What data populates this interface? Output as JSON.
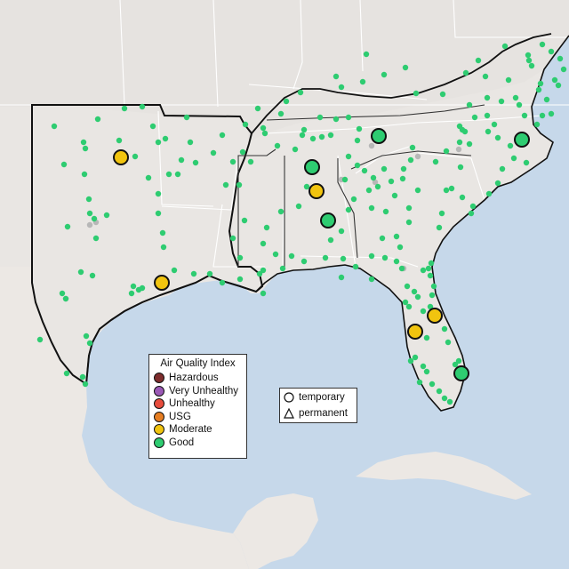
{
  "map": {
    "region": "Southeastern United States",
    "colors": {
      "ocean": "#c6d8ea",
      "land": "#e9e6e3",
      "land_north": "#e7e4e0",
      "mexico": "#ece8e4",
      "state_border": "#ffffff",
      "boundary": "#111111"
    }
  },
  "aqi_legend": {
    "title": "Air Quality Index",
    "items": [
      {
        "label": "Hazardous",
        "color": "#7e2d2d"
      },
      {
        "label": "Very Unhealthy",
        "color": "#9b59b6"
      },
      {
        "label": "Unhealthy",
        "color": "#e74c3c"
      },
      {
        "label": "USG",
        "color": "#e67e22"
      },
      {
        "label": "Moderate",
        "color": "#f1c40f"
      },
      {
        "label": "Good",
        "color": "#2ecc71"
      }
    ]
  },
  "type_legend": {
    "items": [
      {
        "label": "temporary",
        "shape": "circle"
      },
      {
        "label": "permanent",
        "shape": "triangle"
      }
    ]
  },
  "monitor_colors": {
    "good": "#2ecc71",
    "moderate": "#f1c40f",
    "no_data": "#b7b7b7"
  }
}
